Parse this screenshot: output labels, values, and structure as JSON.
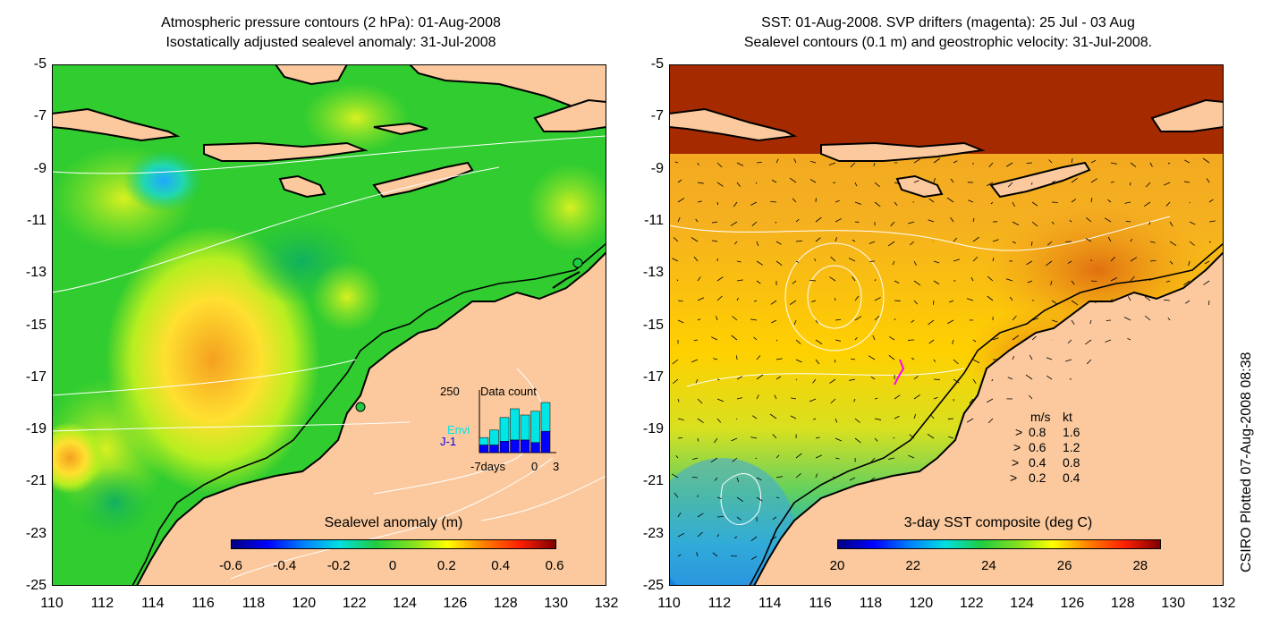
{
  "left_panel": {
    "title_line1": "Atmospheric pressure contours (2 hPa): 01-Aug-2008",
    "title_line2": "Isostatically adjusted sealevel anomaly: 31-Jul-2008",
    "colorbar": {
      "title": "Sealevel anomaly (m)",
      "ticks": [
        "-0.6",
        "-0.4",
        "-0.2",
        "0",
        "0.2",
        "0.4",
        "0.6"
      ],
      "range": [
        -0.6,
        0.6
      ]
    },
    "data_count": {
      "ymax_label": "250",
      "title": "Data count",
      "envi_label": "Envi",
      "j1_label": "J-1",
      "x_label_left": "-7days",
      "x_label_mid": "0",
      "x_label_right": "3",
      "envi_counts": [
        60,
        90,
        140,
        175,
        150,
        165,
        200
      ],
      "j1_counts": [
        30,
        30,
        45,
        50,
        50,
        40,
        85
      ],
      "envi_color": "#00e5e5",
      "j1_color": "#0000ff"
    }
  },
  "right_panel": {
    "title_line1": "SST: 01-Aug-2008. SVP drifters (magenta): 25 Jul - 03 Aug",
    "title_line2": "Sealevel contours (0.1 m) and geostrophic velocity: 31-Jul-2008.",
    "colorbar": {
      "title": "3-day SST composite (deg C)",
      "ticks": [
        "20",
        "22",
        "24",
        "26",
        "28"
      ],
      "range": [
        20,
        28.5
      ]
    },
    "legend": {
      "header_ms": "m/s",
      "header_kt": "kt",
      "rows": [
        {
          "ms": "0.8",
          "kt": "1.6"
        },
        {
          "ms": "0.6",
          "kt": "1.2"
        },
        {
          "ms": "0.4",
          "kt": "0.8"
        },
        {
          "ms": "0.2",
          "kt": "0.4"
        }
      ]
    }
  },
  "axes": {
    "yticks": [
      "-5",
      "-7",
      "-9",
      "-11",
      "-13",
      "-15",
      "-17",
      "-19",
      "-21",
      "-23",
      "-25"
    ],
    "xticks": [
      "110",
      "112",
      "114",
      "116",
      "118",
      "120",
      "122",
      "124",
      "126",
      "128",
      "130",
      "132"
    ],
    "lon_range": [
      110,
      132
    ],
    "lat_range": [
      -25,
      -5
    ]
  },
  "credit": "CSIRO Plotted 07-Aug-2008 08:38",
  "colors": {
    "land": "#fbc99d",
    "ocean_green": "#22cc33",
    "warm_red": "#a52a00",
    "warm_orange": "#f0a020"
  }
}
